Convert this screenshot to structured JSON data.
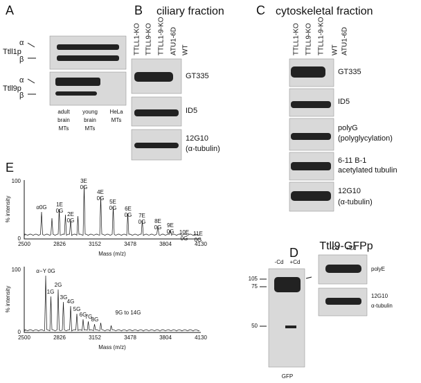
{
  "panel_a": {
    "letter": "A",
    "rows": [
      "Ttll1p",
      "Ttll9p"
    ],
    "alpha": "α",
    "beta": "β",
    "captions": [
      [
        "adult",
        "brain",
        "MTs"
      ],
      [
        "young",
        "brain",
        "MTs"
      ],
      [
        "HeLa",
        "MTs"
      ]
    ]
  },
  "panel_b": {
    "letter": "B",
    "title": "ciliary fraction",
    "lanes": [
      "TTLL1-KO",
      "TTLL9-KO",
      "TTLL1-9-KO",
      "ATU1-6D",
      "WT"
    ],
    "antibodies": [
      [
        "GT335"
      ],
      [
        "ID5"
      ],
      [
        "12G10",
        "(α-tubulin)"
      ]
    ]
  },
  "panel_c": {
    "letter": "C",
    "title": "cytoskeletal fraction",
    "lanes": [
      "TTLL1-KO",
      "TTLL9-KO",
      "TTLL1-9-KO",
      "WT",
      "ATU1-6D"
    ],
    "antibodies": [
      [
        "GT335"
      ],
      [
        "ID5"
      ],
      [
        "polyG",
        "(polyglycylation)"
      ],
      [
        "6-11 B-1",
        "acetylated tubulin"
      ],
      [
        "12G10",
        "(α-tubulin)"
      ]
    ]
  },
  "panel_d": {
    "letter": "D",
    "title": "Ttll9-GFPp",
    "conditions": [
      "-Cd",
      "+Cd"
    ],
    "markers": [
      105,
      75,
      50
    ],
    "left_label": "GFP",
    "right_antibodies": [
      [
        "polyE"
      ],
      [
        "12G10",
        "α-tubulin"
      ]
    ]
  },
  "panel_e": {
    "letter": "E",
    "y_label": "% intensity",
    "x_label": "Mass (m/z)",
    "yticks": [
      0,
      100
    ],
    "xticks": [
      2500,
      2826,
      3152,
      3478,
      3804,
      4130
    ],
    "top_peaks": [
      [
        "α0G"
      ],
      [
        "1E",
        "0G"
      ],
      [
        "2E",
        "0G"
      ],
      [
        "3E",
        "0G"
      ],
      [
        "4E",
        "0G"
      ],
      [
        "5E",
        "0G"
      ],
      [
        "6E",
        "0G"
      ],
      [
        "7E",
        "0G"
      ],
      [
        "8E",
        "0G"
      ],
      [
        "9E",
        "0G"
      ],
      [
        "10E",
        "0G"
      ],
      [
        "11E",
        "0G"
      ]
    ],
    "bottom_peaks": [
      "α−Y 0G",
      "1G",
      "2G",
      "3G",
      "4G",
      "5G",
      "6G",
      "7G",
      "8G",
      "9G to 14G"
    ]
  }
}
